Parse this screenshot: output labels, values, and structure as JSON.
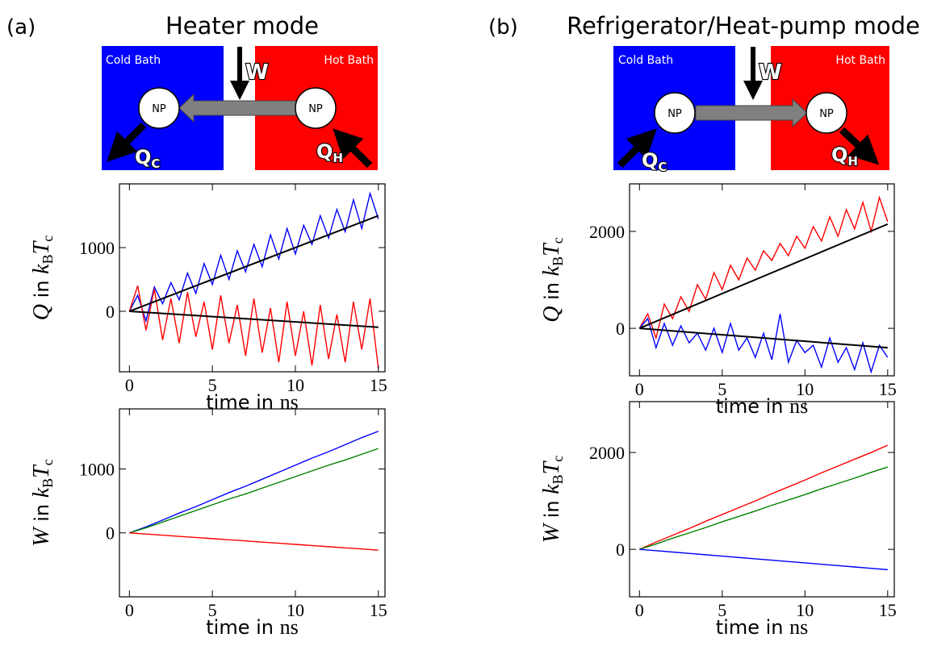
{
  "panels": [
    {
      "label": "(a)",
      "title": "Heater mode",
      "diagram": {
        "cold": "Cold Bath",
        "hot": "Hot Bath",
        "np_left": "NP",
        "np_right": "NP",
        "work": "W",
        "qc": "Q",
        "qc_sub": "C",
        "qh": "Q",
        "qh_sub": "H"
      }
    },
    {
      "label": "(b)",
      "title": "Refrigerator/Heat-pump mode",
      "diagram": {
        "cold": "Cold Bath",
        "hot": "Hot Bath",
        "np_left": "NP",
        "np_right": "NP",
        "work": "W",
        "qc": "Q",
        "qc_sub": "C",
        "qh": "Q",
        "qh_sub": "H"
      }
    }
  ],
  "chart_data": [
    {
      "type": "line",
      "xlabel": {
        "text": "time in ",
        "unit": "ns"
      },
      "ylabel": {
        "var": "Q",
        "text": " in ",
        "k": "k",
        "k_sub": "B",
        "t": "T",
        "t_sub": "c"
      },
      "xlim": [
        -0.6,
        15.4
      ],
      "ylim": [
        -950,
        2000
      ],
      "xticks": [
        0,
        5,
        10,
        15
      ],
      "yticks": [
        0,
        1000
      ],
      "x": [
        0,
        0.5,
        1,
        1.5,
        2,
        2.5,
        3,
        3.5,
        4,
        4.5,
        5,
        5.5,
        6,
        6.5,
        7,
        7.5,
        8,
        8.5,
        9,
        9.5,
        10,
        10.5,
        11,
        11.5,
        12,
        12.5,
        13,
        13.5,
        14,
        14.5,
        15
      ],
      "series": [
        {
          "color": "#0000ff",
          "values": [
            0,
            250,
            -150,
            380,
            120,
            450,
            180,
            600,
            280,
            750,
            420,
            880,
            500,
            950,
            620,
            1050,
            700,
            1200,
            820,
            1300,
            900,
            1350,
            1050,
            1500,
            1150,
            1600,
            1250,
            1750,
            1300,
            1850,
            1450
          ]
        },
        {
          "color": "#ff0000",
          "values": [
            0,
            400,
            -300,
            350,
            -450,
            200,
            -500,
            300,
            -400,
            150,
            -600,
            250,
            -500,
            100,
            -700,
            200,
            -650,
            50,
            -800,
            150,
            -700,
            0,
            -850,
            100,
            -750,
            -50,
            -800,
            150,
            -600,
            200,
            -900
          ]
        },
        {
          "color": "#000000",
          "x": [
            0,
            15
          ],
          "values": [
            0,
            1500
          ]
        },
        {
          "color": "#000000",
          "x": [
            0,
            15
          ],
          "values": [
            0,
            -250
          ]
        }
      ]
    },
    {
      "type": "line",
      "xlabel": {
        "text": "time in ",
        "unit": "ns"
      },
      "ylabel": {
        "var": "W",
        "text": " in ",
        "k": "k",
        "k_sub": "B",
        "t": "T",
        "t_sub": "c"
      },
      "xlim": [
        -0.6,
        15.4
      ],
      "ylim": [
        -1000,
        1940
      ],
      "xticks": [
        0,
        5,
        10,
        15
      ],
      "yticks": [
        0,
        1000
      ],
      "x": [
        0,
        1,
        2,
        3,
        4,
        5,
        6,
        7,
        8,
        9,
        10,
        11,
        12,
        13,
        14,
        15
      ],
      "series": [
        {
          "color": "#0000ff",
          "values": [
            0,
            95,
            200,
            310,
            410,
            520,
            630,
            730,
            840,
            950,
            1060,
            1170,
            1270,
            1380,
            1490,
            1590
          ]
        },
        {
          "color": "#008000",
          "values": [
            0,
            80,
            170,
            260,
            350,
            440,
            530,
            610,
            700,
            790,
            880,
            970,
            1060,
            1140,
            1230,
            1320
          ]
        },
        {
          "color": "#ff0000",
          "values": [
            0,
            -18,
            -36,
            -54,
            -72,
            -90,
            -108,
            -126,
            -144,
            -162,
            -180,
            -198,
            -216,
            -234,
            -252,
            -270
          ]
        }
      ]
    },
    {
      "type": "line",
      "xlabel": {
        "text": "time in ",
        "unit": "ns"
      },
      "ylabel": {
        "var": "Q",
        "text": " in ",
        "k": "k",
        "k_sub": "B",
        "t": "T",
        "t_sub": "c"
      },
      "xlim": [
        -0.6,
        15.4
      ],
      "ylim": [
        -980,
        2980
      ],
      "xticks": [
        0,
        5,
        10,
        15
      ],
      "yticks": [
        0,
        2000
      ],
      "x": [
        0,
        0.5,
        1,
        1.5,
        2,
        2.5,
        3,
        3.5,
        4,
        4.5,
        5,
        5.5,
        6,
        6.5,
        7,
        7.5,
        8,
        8.5,
        9,
        9.5,
        10,
        10.5,
        11,
        11.5,
        12,
        12.5,
        13,
        13.5,
        14,
        14.5,
        15
      ],
      "series": [
        {
          "color": "#ff0000",
          "values": [
            0,
            300,
            -200,
            500,
            200,
            650,
            350,
            900,
            600,
            1150,
            800,
            1300,
            1000,
            1450,
            1200,
            1600,
            1400,
            1750,
            1500,
            1900,
            1650,
            2100,
            1800,
            2300,
            1900,
            2450,
            2050,
            2600,
            2000,
            2700,
            2200
          ]
        },
        {
          "color": "#0000ff",
          "values": [
            0,
            200,
            -400,
            100,
            -350,
            50,
            -300,
            -100,
            -450,
            0,
            -500,
            100,
            -450,
            -200,
            -600,
            -100,
            -650,
            300,
            -700,
            -250,
            -500,
            -350,
            -800,
            -200,
            -700,
            -400,
            -850,
            -300,
            -900,
            -350,
            -600
          ]
        },
        {
          "color": "#000000",
          "x": [
            0,
            15
          ],
          "values": [
            0,
            2150
          ]
        },
        {
          "color": "#000000",
          "x": [
            0,
            15
          ],
          "values": [
            0,
            -400
          ]
        }
      ]
    },
    {
      "type": "line",
      "xlabel": {
        "text": "time in ",
        "unit": "ns"
      },
      "ylabel": {
        "var": "W",
        "text": " in ",
        "k": "k",
        "k_sub": "B",
        "t": "T",
        "t_sub": "c"
      },
      "xlim": [
        -0.6,
        15.4
      ],
      "ylim": [
        -980,
        3050
      ],
      "xticks": [
        0,
        5,
        10,
        15
      ],
      "yticks": [
        0,
        2000
      ],
      "x": [
        0,
        1,
        2,
        3,
        4,
        5,
        6,
        7,
        8,
        9,
        10,
        11,
        12,
        13,
        14,
        15
      ],
      "series": [
        {
          "color": "#ff0000",
          "values": [
            0,
            150,
            290,
            430,
            580,
            720,
            860,
            1000,
            1150,
            1290,
            1430,
            1580,
            1720,
            1860,
            2000,
            2150
          ]
        },
        {
          "color": "#008000",
          "values": [
            0,
            110,
            230,
            340,
            450,
            570,
            680,
            790,
            910,
            1020,
            1130,
            1250,
            1360,
            1470,
            1590,
            1700
          ]
        },
        {
          "color": "#0000ff",
          "values": [
            0,
            -28,
            -56,
            -84,
            -112,
            -140,
            -168,
            -196,
            -224,
            -252,
            -280,
            -308,
            -336,
            -364,
            -392,
            -420
          ]
        }
      ]
    }
  ]
}
